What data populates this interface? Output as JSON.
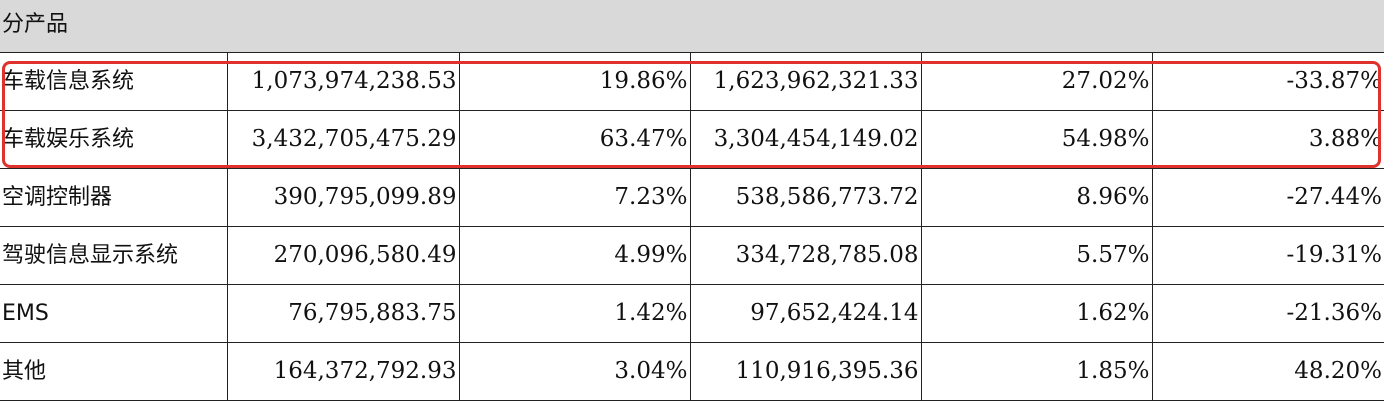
{
  "section": {
    "title": "分产品"
  },
  "table": {
    "rows": [
      {
        "name": "车载信息系统",
        "revenue_current": "1,073,974,238.53",
        "share_current": "19.86%",
        "revenue_prior": "1,623,962,321.33",
        "share_prior": "27.02%",
        "change": "-33.87%"
      },
      {
        "name": "车载娱乐系统",
        "revenue_current": "3,432,705,475.29",
        "share_current": "63.47%",
        "revenue_prior": "3,304,454,149.02",
        "share_prior": "54.98%",
        "change": "3.88%"
      },
      {
        "name": "空调控制器",
        "revenue_current": "390,795,099.89",
        "share_current": "7.23%",
        "revenue_prior": "538,586,773.72",
        "share_prior": "8.96%",
        "change": "-27.44%"
      },
      {
        "name": "驾驶信息显示系统",
        "revenue_current": "270,096,580.49",
        "share_current": "4.99%",
        "revenue_prior": "334,728,785.08",
        "share_prior": "5.57%",
        "change": "-19.31%"
      },
      {
        "name": "EMS",
        "revenue_current": "76,795,883.75",
        "share_current": "1.42%",
        "revenue_prior": "97,652,424.14",
        "share_prior": "1.62%",
        "change": "-21.36%"
      },
      {
        "name": "其他",
        "revenue_current": "164,372,792.93",
        "share_current": "3.04%",
        "revenue_prior": "110,916,395.36",
        "share_prior": "1.85%",
        "change": "48.20%"
      }
    ]
  },
  "highlight": {
    "color": "#e0322c"
  }
}
